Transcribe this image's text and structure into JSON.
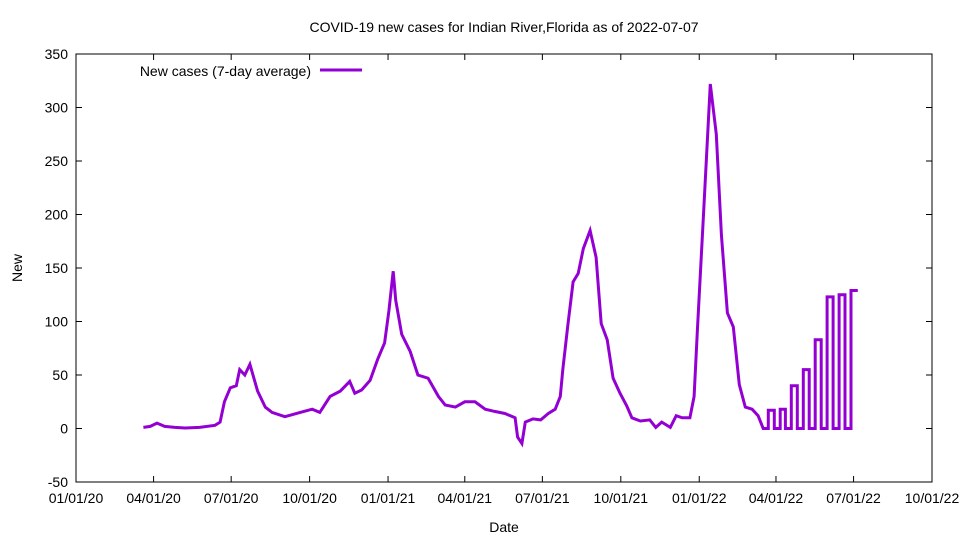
{
  "chart_data": {
    "type": "line",
    "title": "COVID-19 new cases for Indian River,Florida as of 2022-07-07",
    "xlabel": "Date",
    "ylabel": "New",
    "x_unit": "days since 2020-01-01",
    "xlim": [
      0,
      1004
    ],
    "ylim": [
      -50,
      350
    ],
    "yticks": [
      -50,
      0,
      50,
      100,
      150,
      200,
      250,
      300,
      350
    ],
    "xticks": [
      {
        "day": 0,
        "label": "01/01/20"
      },
      {
        "day": 91,
        "label": "04/01/20"
      },
      {
        "day": 182,
        "label": "07/01/20"
      },
      {
        "day": 274,
        "label": "10/01/20"
      },
      {
        "day": 366,
        "label": "01/01/21"
      },
      {
        "day": 456,
        "label": "04/01/21"
      },
      {
        "day": 547,
        "label": "07/01/21"
      },
      {
        "day": 639,
        "label": "10/01/21"
      },
      {
        "day": 731,
        "label": "01/01/22"
      },
      {
        "day": 821,
        "label": "04/01/22"
      },
      {
        "day": 912,
        "label": "07/01/22"
      },
      {
        "day": 1004,
        "label": "10/01/22"
      }
    ],
    "grid": false,
    "legend_position": "top-left",
    "series": [
      {
        "name": "New cases (7-day average)",
        "color": "#9400d3",
        "points": [
          [
            79,
            1
          ],
          [
            87,
            2
          ],
          [
            95,
            5
          ],
          [
            104,
            2
          ],
          [
            116,
            1
          ],
          [
            128,
            0.5
          ],
          [
            145,
            1
          ],
          [
            163,
            3
          ],
          [
            169,
            6
          ],
          [
            174,
            25
          ],
          [
            181,
            38
          ],
          [
            188,
            40
          ],
          [
            192,
            55
          ],
          [
            198,
            50
          ],
          [
            204,
            60
          ],
          [
            213,
            35
          ],
          [
            222,
            20
          ],
          [
            230,
            15
          ],
          [
            245,
            11
          ],
          [
            263,
            15
          ],
          [
            277,
            18
          ],
          [
            286,
            15
          ],
          [
            298,
            30
          ],
          [
            310,
            35
          ],
          [
            321,
            44
          ],
          [
            327,
            33
          ],
          [
            335,
            36
          ],
          [
            345,
            45
          ],
          [
            354,
            65
          ],
          [
            362,
            80
          ],
          [
            367,
            110
          ],
          [
            372,
            147
          ],
          [
            375,
            120
          ],
          [
            382,
            88
          ],
          [
            392,
            72
          ],
          [
            401,
            50
          ],
          [
            413,
            47
          ],
          [
            425,
            30
          ],
          [
            433,
            22
          ],
          [
            445,
            20
          ],
          [
            456,
            25
          ],
          [
            468,
            25
          ],
          [
            480,
            18
          ],
          [
            491,
            16
          ],
          [
            503,
            14
          ],
          [
            515,
            10
          ],
          [
            518,
            -8
          ],
          [
            523,
            -14
          ],
          [
            527,
            6
          ],
          [
            536,
            9
          ],
          [
            545,
            8
          ],
          [
            554,
            14
          ],
          [
            562,
            18
          ],
          [
            568,
            30
          ],
          [
            571,
            55
          ],
          [
            577,
            97
          ],
          [
            583,
            137
          ],
          [
            589,
            145
          ],
          [
            595,
            168
          ],
          [
            603,
            185
          ],
          [
            610,
            160
          ],
          [
            616,
            98
          ],
          [
            623,
            83
          ],
          [
            630,
            47
          ],
          [
            638,
            33
          ],
          [
            646,
            21
          ],
          [
            652,
            10
          ],
          [
            662,
            7
          ],
          [
            673,
            8
          ],
          [
            680,
            1
          ],
          [
            687,
            6
          ],
          [
            697,
            1
          ],
          [
            704,
            12
          ],
          [
            711,
            10
          ],
          [
            720,
            10
          ],
          [
            725,
            30
          ],
          [
            729,
            94
          ],
          [
            736,
            200
          ],
          [
            744,
            322
          ],
          [
            751,
            275
          ],
          [
            757,
            181
          ],
          [
            764,
            108
          ],
          [
            771,
            95
          ],
          [
            778,
            41
          ],
          [
            785,
            20
          ],
          [
            793,
            18
          ],
          [
            800,
            12
          ],
          [
            806,
            0
          ],
          [
            812,
            0
          ],
          [
            812,
            17
          ],
          [
            819,
            17
          ],
          [
            819,
            0
          ],
          [
            826,
            0
          ],
          [
            826,
            18
          ],
          [
            832,
            18
          ],
          [
            832,
            0
          ],
          [
            839,
            0
          ],
          [
            839,
            40
          ],
          [
            846,
            40
          ],
          [
            846,
            0
          ],
          [
            853,
            0
          ],
          [
            853,
            55
          ],
          [
            860,
            55
          ],
          [
            860,
            0
          ],
          [
            867,
            0
          ],
          [
            867,
            83
          ],
          [
            874,
            83
          ],
          [
            874,
            0
          ],
          [
            881,
            0
          ],
          [
            881,
            123
          ],
          [
            888,
            123
          ],
          [
            888,
            0
          ],
          [
            895,
            0
          ],
          [
            895,
            125
          ],
          [
            902,
            125
          ],
          [
            902,
            0
          ],
          [
            909,
            0
          ],
          [
            909,
            129
          ],
          [
            917,
            129
          ]
        ]
      }
    ]
  }
}
